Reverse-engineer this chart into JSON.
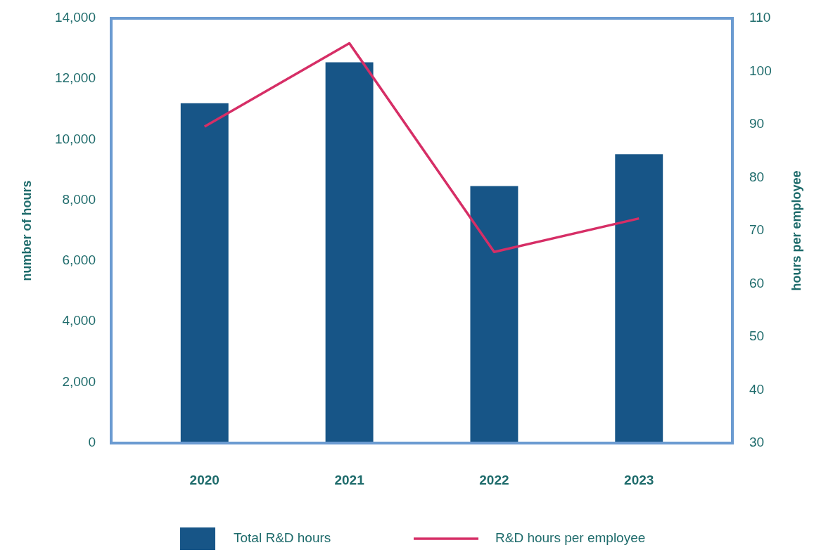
{
  "chart_data": {
    "type": "bar",
    "categories": [
      "2020",
      "2021",
      "2022",
      "2023"
    ],
    "series": [
      {
        "name": "Total R&D hours",
        "color": "#175587",
        "values": [
          11200,
          12550,
          8470,
          9520
        ]
      },
      {
        "name": "R&D hours per employee",
        "type": "line",
        "axis": "y2",
        "color": "#d62e66",
        "values": [
          89.6,
          105.3,
          66,
          72.3
        ]
      }
    ],
    "ylabel": "number of hours",
    "y2label": "hours per employee",
    "ylim": [
      0,
      14000
    ],
    "yticks": [
      {
        "value": 0,
        "label": "0"
      },
      {
        "value": 2000,
        "label": "2,000"
      },
      {
        "value": 4000,
        "label": "4,000"
      },
      {
        "value": 6000,
        "label": "6,000"
      },
      {
        "value": 8000,
        "label": "8,000"
      },
      {
        "value": 10000,
        "label": "10,000"
      },
      {
        "value": 12000,
        "label": "12,000"
      },
      {
        "value": 14000,
        "label": "14,000"
      }
    ],
    "y2lim": [
      30,
      110
    ],
    "y2ticks": [
      30,
      40,
      50,
      60,
      70,
      80,
      90,
      100,
      110
    ],
    "grid": false,
    "legend": "bottom",
    "marker": "none",
    "line_style": "solid"
  }
}
